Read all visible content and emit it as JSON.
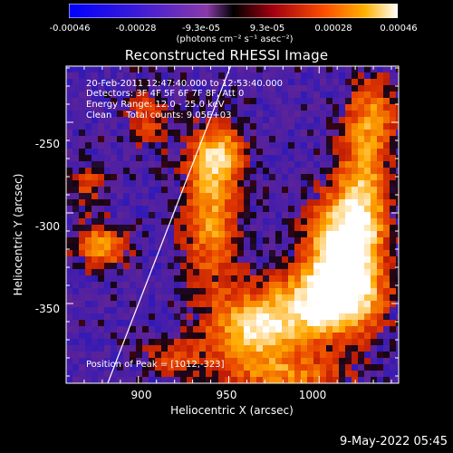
{
  "colorbar": {
    "ticks": [
      "-0.00046",
      "-0.00028",
      "-9.3e-05",
      "9.3e-05",
      "0.00028",
      "0.00046"
    ],
    "label": "(photons cm⁻² s⁻¹ asec⁻²)"
  },
  "info_lines": [
    "20-Feb-2011 12:47:40.000 to 12:53:40.000",
    "Detectors: 3F 4F 5F 6F 7F 8F, Att 0",
    "Energy Range: 12.0 - 25.0 keV",
    "Clean     Total counts: 9.05E+03"
  ],
  "peak_label": "Position of Peak = [1012,-323]",
  "footer": "9-May-2022 05:45",
  "chart_data": {
    "type": "heatmap",
    "title": "Reconstructed RHESSI Image",
    "xlabel": "Heliocentric X (arcsec)",
    "ylabel": "Heliocentric Y (arcsec)",
    "xlim": [
      860,
      1044
    ],
    "ylim": [
      -394,
      -219
    ],
    "xticks": [
      900,
      950,
      1000
    ],
    "yticks": [
      -250,
      -300,
      -350
    ],
    "clim": [
      -0.00046,
      0.00046
    ],
    "peak": [
      1012,
      -323
    ],
    "limb_line": [
      [
        883,
        -394
      ],
      [
        951,
        -219
      ]
    ],
    "sources": [
      {
        "x": 1012,
        "y": -323,
        "sx": 13,
        "sy": 22,
        "a": 1.0
      },
      {
        "x": 1003,
        "y": -350,
        "sx": 22,
        "sy": 14,
        "a": 0.75
      },
      {
        "x": 1025,
        "y": -290,
        "sx": 10,
        "sy": 30,
        "a": 0.6
      },
      {
        "x": 965,
        "y": -365,
        "sx": 18,
        "sy": 14,
        "a": 0.75
      },
      {
        "x": 940,
        "y": -300,
        "sx": 11,
        "sy": 30,
        "a": 0.6
      },
      {
        "x": 945,
        "y": -268,
        "sx": 10,
        "sy": 10,
        "a": 0.55
      },
      {
        "x": 880,
        "y": -318,
        "sx": 10,
        "sy": 9,
        "a": 0.6
      },
      {
        "x": 872,
        "y": -285,
        "sx": 7,
        "sy": 9,
        "a": 0.35
      },
      {
        "x": 905,
        "y": -248,
        "sx": 8,
        "sy": 14,
        "a": 0.35
      },
      {
        "x": 1030,
        "y": -245,
        "sx": 10,
        "sy": 15,
        "a": 0.4
      },
      {
        "x": 985,
        "y": -390,
        "sx": 25,
        "sy": 8,
        "a": 0.45
      },
      {
        "x": 920,
        "y": -380,
        "sx": 14,
        "sy": 8,
        "a": 0.3
      }
    ]
  }
}
